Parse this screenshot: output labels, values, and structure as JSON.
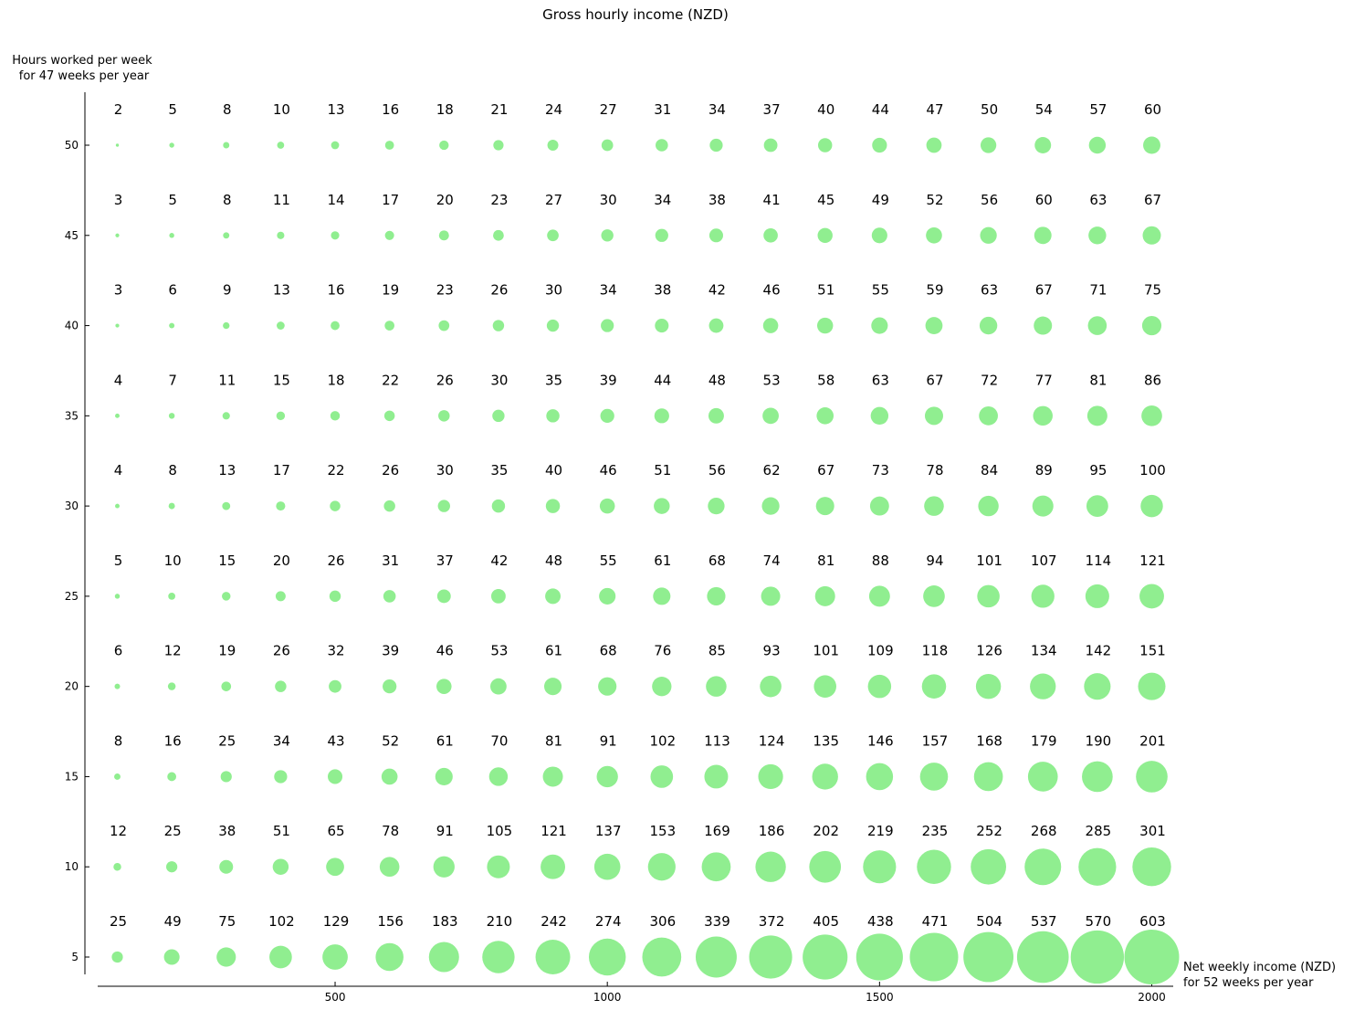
{
  "chart_data": {
    "type": "scatter",
    "title": "Gross hourly income (NZD)",
    "xlabel": [
      "Net weekly income (NZD)",
      "for 52 weeks per year"
    ],
    "ylabel": [
      "Hours worked per week",
      "for 47 weeks per year"
    ],
    "x": [
      100,
      200,
      300,
      400,
      500,
      600,
      700,
      800,
      900,
      1000,
      1100,
      1200,
      1300,
      1400,
      1500,
      1600,
      1700,
      1800,
      1900,
      2000
    ],
    "y": [
      5,
      10,
      15,
      20,
      25,
      30,
      35,
      40,
      45,
      50
    ],
    "xticks": [
      "500",
      "1000",
      "1500",
      "2000"
    ],
    "xtick_values": [
      500,
      1000,
      1500,
      2000
    ],
    "yticks": [
      "5",
      "10",
      "15",
      "20",
      "25",
      "30",
      "35",
      "40",
      "45",
      "50"
    ],
    "xlim": [
      0,
      2050
    ],
    "ylim": [
      3.5,
      53
    ],
    "marker_color": "#90ee90",
    "grid": false,
    "values": [
      [
        25,
        49,
        75,
        102,
        129,
        156,
        183,
        210,
        242,
        274,
        306,
        339,
        372,
        405,
        438,
        471,
        504,
        537,
        570,
        603
      ],
      [
        12,
        25,
        38,
        51,
        65,
        78,
        91,
        105,
        121,
        137,
        153,
        169,
        186,
        202,
        219,
        235,
        252,
        268,
        285,
        301
      ],
      [
        8,
        16,
        25,
        34,
        43,
        52,
        61,
        70,
        81,
        91,
        102,
        113,
        124,
        135,
        146,
        157,
        168,
        179,
        190,
        201
      ],
      [
        6,
        12,
        19,
        26,
        32,
        39,
        46,
        53,
        61,
        68,
        76,
        85,
        93,
        101,
        109,
        118,
        126,
        134,
        142,
        151
      ],
      [
        5,
        10,
        15,
        20,
        26,
        31,
        37,
        42,
        48,
        55,
        61,
        68,
        74,
        81,
        88,
        94,
        101,
        107,
        114,
        121
      ],
      [
        4,
        8,
        13,
        17,
        22,
        26,
        30,
        35,
        40,
        46,
        51,
        56,
        62,
        67,
        73,
        78,
        84,
        89,
        95,
        100
      ],
      [
        4,
        7,
        11,
        15,
        18,
        22,
        26,
        30,
        35,
        39,
        44,
        48,
        53,
        58,
        63,
        67,
        72,
        77,
        81,
        86
      ],
      [
        3,
        6,
        9,
        13,
        16,
        19,
        23,
        26,
        30,
        34,
        38,
        42,
        46,
        51,
        55,
        59,
        63,
        67,
        71,
        75
      ],
      [
        3,
        5,
        8,
        11,
        14,
        17,
        20,
        23,
        27,
        30,
        34,
        38,
        41,
        45,
        49,
        52,
        56,
        60,
        63,
        67
      ],
      [
        2,
        5,
        8,
        10,
        13,
        16,
        18,
        21,
        24,
        27,
        31,
        34,
        37,
        40,
        44,
        47,
        50,
        54,
        57,
        60
      ]
    ]
  }
}
